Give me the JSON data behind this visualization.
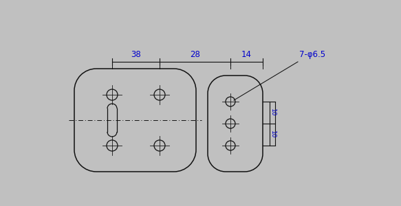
{
  "bg_color": "#c0c0c0",
  "line_color": "#111111",
  "text_color": "#0000cc",
  "fig_width": 5.83,
  "fig_height": 3.0,
  "dpi": 100,
  "dim_labels": [
    "38",
    "28",
    "14",
    "7-φ6.5"
  ],
  "side_labels": [
    "10",
    "10"
  ]
}
